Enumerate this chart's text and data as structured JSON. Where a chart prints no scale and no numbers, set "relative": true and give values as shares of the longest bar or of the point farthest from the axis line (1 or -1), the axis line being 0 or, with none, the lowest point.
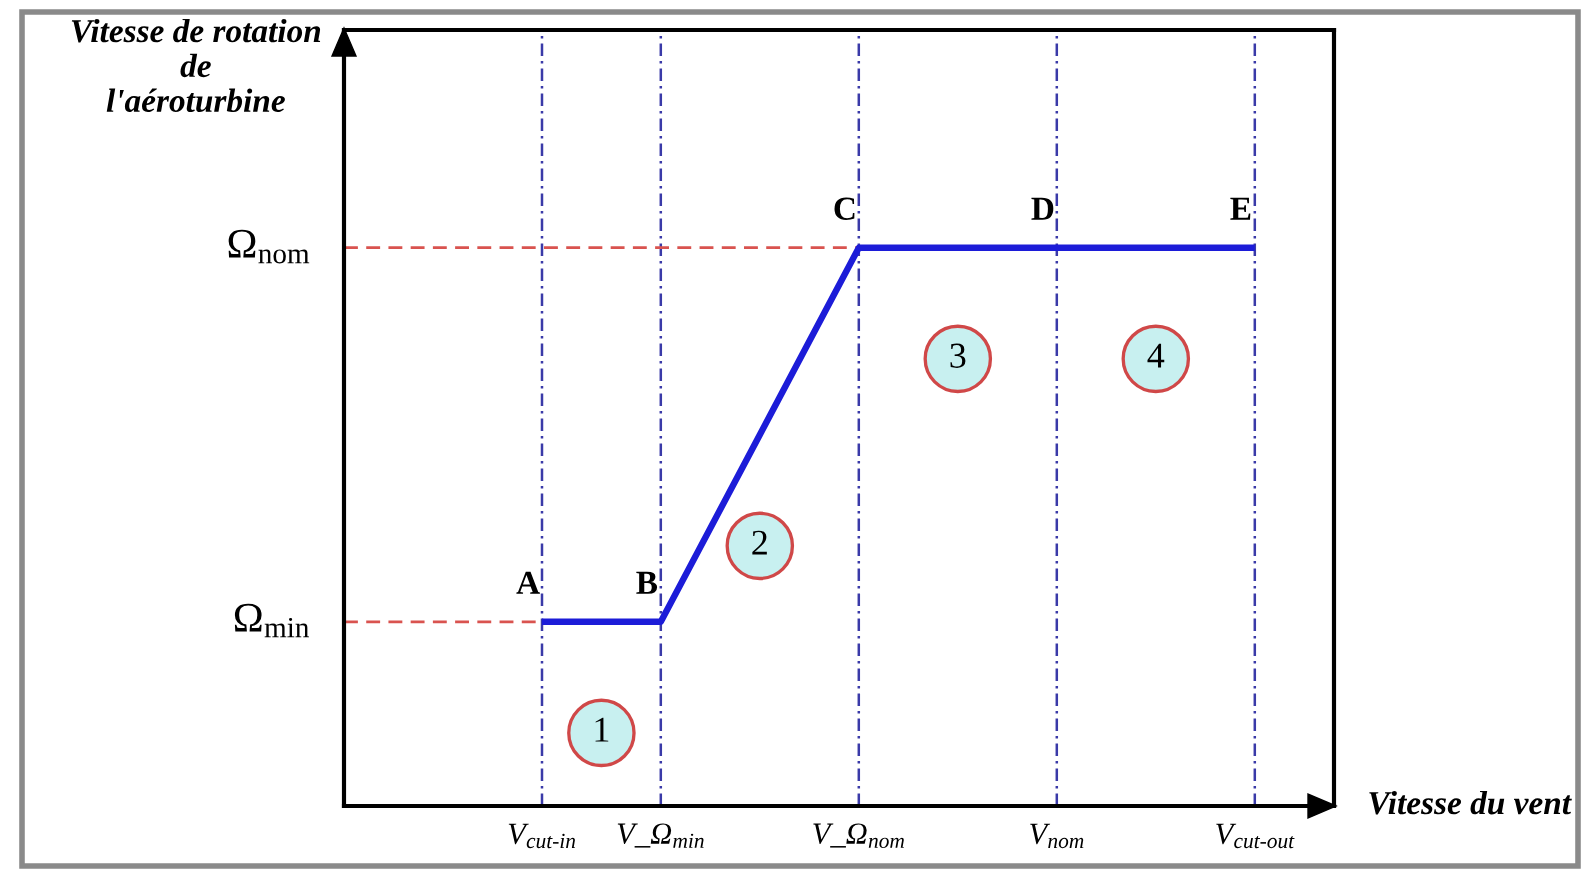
{
  "chart_data": {
    "type": "line",
    "relative": true,
    "xlabel": "Vitesse du vent",
    "ylabel": "Vitesse de rotation\nde\nl'aéroturbine",
    "categories": [
      null,
      null,
      null,
      null,
      null,
      "V$_{cut‐in}$",
      null,
      null,
      "V_Ω$_{min}$",
      null,
      null,
      null,
      null,
      "V_Ω$_{nom}$",
      null,
      null,
      null,
      null,
      "V$_{nom}$",
      null,
      null,
      null,
      null,
      "V$_{cut‐out}$",
      null,
      null
    ],
    "series": [
      {
        "color": "#1c1cd8",
        "x": [
          "V$_{cut‐in}$",
          "V_Ω$_{min}$",
          "V_Ω$_{nom}$",
          "V$_{nom}$",
          "V$_{cut‐out}$"
        ],
        "values": [
          0.33,
          0.33,
          1,
          1,
          1
        ]
      }
    ],
    "annotations": [
      {
        "text": "A",
        "x": "V$_{cut‐in}$",
        "y": 0.33
      },
      {
        "text": "B",
        "x": "V_Ω$_{min}$",
        "y": 0.33
      },
      {
        "text": "C",
        "x": "V_Ω$_{nom}$",
        "y": 1
      },
      {
        "text": "D",
        "x": "V$_{nom}$",
        "y": 1
      },
      {
        "text": "E",
        "x": "V$_{cut‐out}$",
        "y": 1
      },
      "1",
      "2",
      "3",
      "4"
    ],
    "ref_lines": [
      {
        "axis": "y",
        "value": 1,
        "label": "Ω$_{nom}$",
        "color": "#d9534f",
        "line_style": "dashed"
      },
      {
        "axis": "y",
        "value": 0.33,
        "label": "Ω$_{min}$",
        "color": "#d9534f",
        "line_style": "dashed"
      }
    ],
    "grid": "x",
    "tick_labels": "x"
  }
}
